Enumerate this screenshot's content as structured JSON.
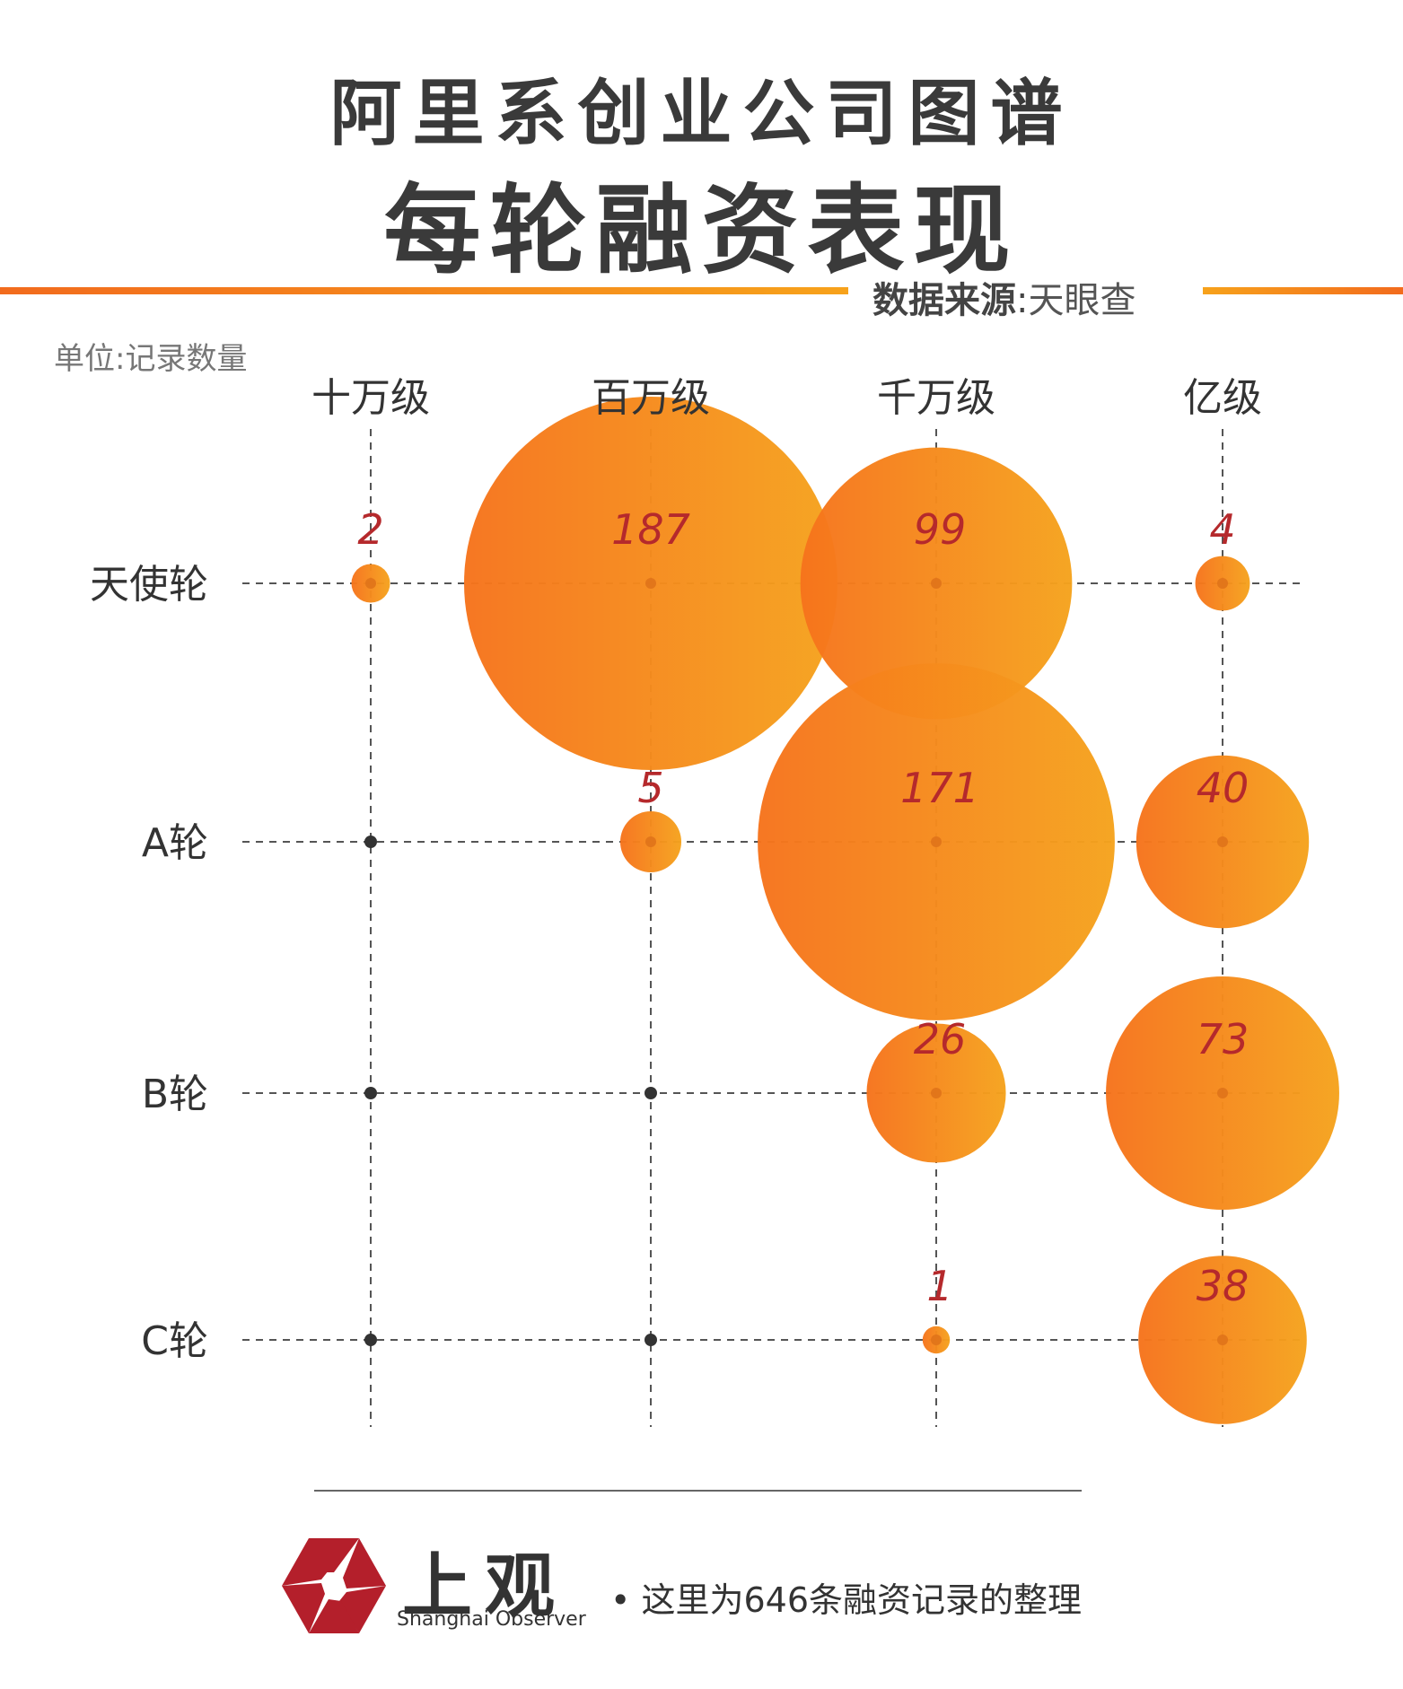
{
  "header": {
    "title_line1": "阿里系创业公司图谱",
    "title_line2": "每轮融资表现",
    "source_label": "数据来源",
    "source_sep": ":",
    "source_value": "天眼查"
  },
  "unit_label": "单位:记录数量",
  "chart_data": {
    "type": "bubble",
    "columns": [
      "十万级",
      "百万级",
      "千万级",
      "亿级"
    ],
    "rows": [
      "天使轮",
      "A轮",
      "B轮",
      "C轮"
    ],
    "values": [
      [
        2,
        187,
        99,
        4
      ],
      [
        0,
        5,
        171,
        40
      ],
      [
        0,
        0,
        26,
        73
      ],
      [
        0,
        0,
        1,
        38
      ]
    ],
    "labels": [
      [
        "2",
        "187",
        "99",
        "4"
      ],
      [
        "",
        "5",
        "171",
        "40"
      ],
      [
        "",
        "",
        "26",
        "73"
      ],
      [
        "",
        "",
        "1",
        "38"
      ]
    ],
    "colors": {
      "bubble_start": "#f6731c",
      "bubble_end": "#f5a31d",
      "label": "#b5292c",
      "dot": "#333333",
      "grid": "#555555"
    }
  },
  "footer": {
    "logo_cn": "上观",
    "logo_en": "Shanghai Observer",
    "note": "• 这里为646条融资记录的整理",
    "logo_color": "#b41f2b"
  }
}
